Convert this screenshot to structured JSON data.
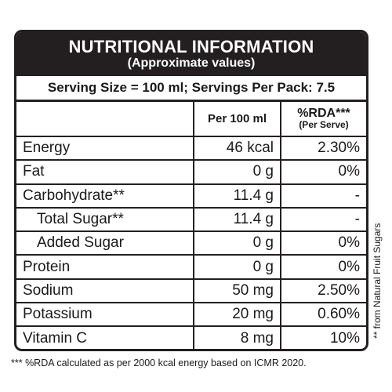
{
  "title": "NUTRITIONAL INFORMATION",
  "subtitle": "(Approximate values)",
  "serving_line": "Serving Size = 100 ml; Servings Per Pack: 7.5",
  "headers": {
    "per_100ml": "Per 100 ml",
    "rda_main": "%RDA***",
    "rda_sub": "(Per Serve)"
  },
  "rows": [
    {
      "name": "Energy",
      "value": "46 kcal",
      "rda": "2.30%"
    },
    {
      "name": "Fat",
      "value": "0 g",
      "rda": "0%"
    },
    {
      "name": "Carbohydrate**",
      "value": "11.4 g",
      "rda": "-"
    },
    {
      "name": "Total Sugar**",
      "value": "11.4 g",
      "rda": "-"
    },
    {
      "name": "Added Sugar",
      "value": "0 g",
      "rda": "0%"
    },
    {
      "name": "Protein",
      "value": "0 g",
      "rda": "0%"
    },
    {
      "name": "Sodium",
      "value": "50 mg",
      "rda": "2.50%"
    },
    {
      "name": "Potassium",
      "value": "20 mg",
      "rda": "0.60%"
    },
    {
      "name": "Vitamin C",
      "value": "8 mg",
      "rda": "10%"
    }
  ],
  "footnote": "*** %RDA calculated as per  2000 kcal energy based on ICMR 2020.",
  "side_note": "** from Natural Fruit Sugars"
}
